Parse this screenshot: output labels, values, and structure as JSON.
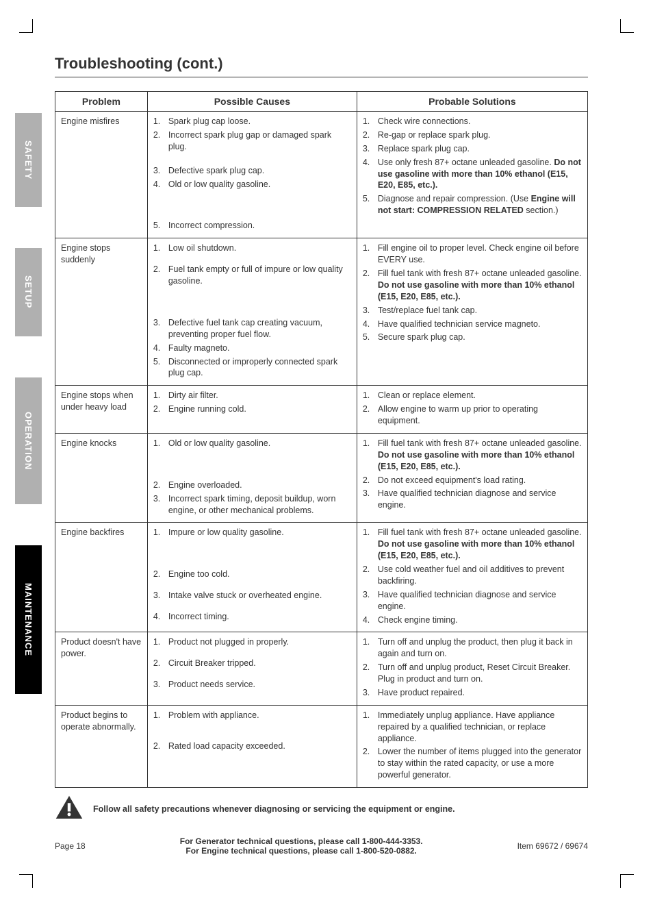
{
  "title": "Troubleshooting (cont.)",
  "tabs": [
    {
      "label": "SAFETY",
      "class": "tab-gray"
    },
    {
      "label": "SETUP",
      "class": "tab-gray"
    },
    {
      "label": "OPERATION",
      "class": "tab-gray"
    },
    {
      "label": "MAINTENANCE",
      "class": "tab-black"
    }
  ],
  "columns": [
    "Problem",
    "Possible Causes",
    "Probable Solutions"
  ],
  "rows": [
    {
      "problem": "Engine misfires",
      "causes": [
        "Spark plug cap loose.",
        "Incorrect spark plug gap or damaged spark plug.",
        "Defective spark plug cap.",
        "Old or low quality gasoline.",
        "Incorrect compression."
      ],
      "solutions": [
        {
          "text": "Check wire connections."
        },
        {
          "text": "Re-gap or replace spark plug."
        },
        {
          "text": "Replace spark plug cap."
        },
        {
          "text": "Use only fresh 87+ octane unleaded gasoline. ",
          "bold": "Do not use gasoline with more than 10% ethanol (E15, E20, E85, etc.)."
        },
        {
          "text": "Diagnose and repair compression. (Use ",
          "bold": "Engine will not start: COMPRESSION RELATED",
          "after": " section.)"
        }
      ],
      "cause_style": "padding-top:48px"
    },
    {
      "problem": "Engine stops suddenly",
      "causes": [
        "Low oil shutdown.",
        "Fuel tank empty or full of impure or low quality gasoline.",
        "Defective fuel tank cap creating vacuum, preventing proper fuel flow.",
        "Faulty magneto.",
        "Disconnected or improperly connected spark plug cap."
      ],
      "solutions": [
        {
          "text": "Fill engine oil to proper level.  Check engine oil before EVERY use."
        },
        {
          "text": "Fill fuel tank with fresh 87+ octane unleaded gasoline. ",
          "bold": "Do not use gasoline with more than 10% ethanol (E15, E20, E85, etc.)."
        },
        {
          "text": "Test/replace fuel tank cap."
        },
        {
          "text": "Have qualified technician service magneto."
        },
        {
          "text": "Secure spark plug cap."
        }
      ]
    },
    {
      "problem": "Engine stops when under heavy load",
      "causes": [
        "Dirty air filter.",
        "Engine running cold."
      ],
      "solutions": [
        {
          "text": "Clean or replace element."
        },
        {
          "text": "Allow engine to warm up prior to operating equipment."
        }
      ]
    },
    {
      "problem": "Engine knocks",
      "causes": [
        "Old or low quality gasoline.",
        "Engine overloaded.",
        "Incorrect spark timing, deposit buildup, worn engine, or other mechanical problems."
      ],
      "solutions": [
        {
          "text": "Fill fuel tank with fresh 87+ octane unleaded gasoline. ",
          "bold": "Do not use gasoline with more than 10% ethanol (E15, E20, E85, etc.)."
        },
        {
          "text": "Do not exceed equipment's load rating."
        },
        {
          "text": "Have qualified technician diagnose and service engine."
        }
      ]
    },
    {
      "problem": "Engine backfires",
      "causes": [
        "Impure or low quality gasoline.",
        "Engine too cold.",
        "Intake valve stuck or overheated engine.",
        "Incorrect timing."
      ],
      "solutions": [
        {
          "text": "Fill fuel tank with fresh 87+ octane unleaded gasoline. ",
          "bold": "Do not use gasoline with more than 10% ethanol (E15, E20, E85, etc.)."
        },
        {
          "text": "Use cold weather fuel and oil additives to prevent backfiring."
        },
        {
          "text": "Have qualified technician diagnose and service engine."
        },
        {
          "text": "Check engine timing."
        }
      ]
    },
    {
      "problem": "Product doesn't have power.",
      "causes": [
        "Product not plugged in properly.",
        "Circuit Breaker tripped.",
        "Product needs service."
      ],
      "solutions": [
        {
          "text": "Turn off and unplug the product, then plug it back in again and turn on."
        },
        {
          "text": "Turn off and unplug product, Reset Circuit Breaker. Plug in product and turn on."
        },
        {
          "text": "Have product repaired."
        }
      ]
    },
    {
      "problem": "Product begins to operate abnormally.",
      "causes": [
        "Problem with appliance.",
        "Rated load capacity exceeded."
      ],
      "solutions": [
        {
          "text": "Immediately unplug appliance. Have appliance repaired by a qualified technician, or replace appliance."
        },
        {
          "text": "Lower the number of items plugged into the generator to stay within the rated capacity, or use a more powerful generator."
        }
      ]
    }
  ],
  "warning": "Follow all safety precautions whenever diagnosing or servicing the equipment or engine.",
  "footer": {
    "page": "Page 18",
    "line1": "For Generator technical questions, please call 1-800-444-3353.",
    "line2": "For Engine technical questions, please call 1-800-520-0882.",
    "item": "Item 69672 / 69674"
  },
  "colors": {
    "border": "#333333",
    "tab_gray": "#b0b0b0",
    "tab_black": "#000000",
    "text": "#333333"
  }
}
